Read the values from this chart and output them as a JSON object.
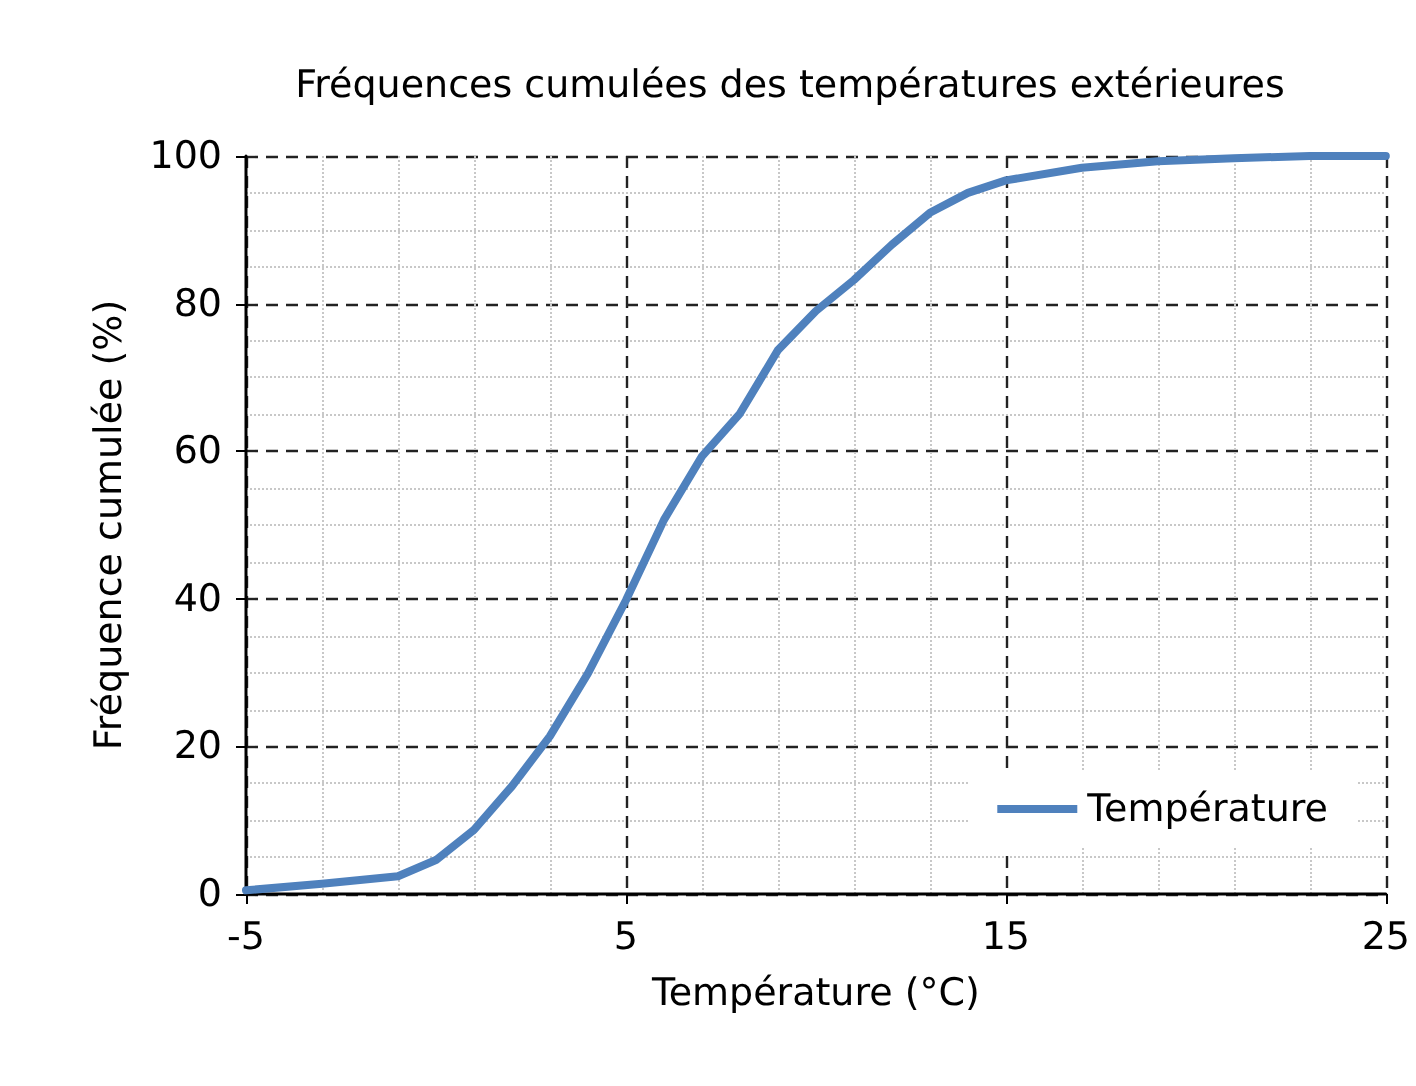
{
  "chart_data": {
    "type": "line",
    "title": "Fréquences cumulées des températures extérieures",
    "xlabel": "Température (°C)",
    "ylabel": "Fréquence cumulée (%)",
    "xlim": [
      -5,
      25
    ],
    "xticks": [
      -5,
      5,
      15,
      25
    ],
    "ylim": [
      0,
      100
    ],
    "yticks": [
      0,
      20,
      40,
      60,
      80,
      100
    ],
    "grid": true,
    "legend": "bottom right",
    "marker": "none",
    "line_style": "solid",
    "series": [
      {
        "name": "Température",
        "color": "#4f81bd",
        "x": [
          -5,
          -3,
          -1,
          0,
          1,
          2,
          3,
          4,
          5,
          6,
          7,
          8,
          9,
          10,
          11,
          12,
          13,
          14,
          15,
          17,
          19,
          21,
          23,
          25
        ],
        "values": [
          0.5,
          1.4,
          2.4,
          4.6,
          8.7,
          14.6,
          21.4,
          29.9,
          39.8,
          50.7,
          59.3,
          65.1,
          73.7,
          79,
          83.2,
          88,
          92.3,
          95,
          96.7,
          98.4,
          99.3,
          99.7,
          100,
          100
        ]
      }
    ]
  }
}
